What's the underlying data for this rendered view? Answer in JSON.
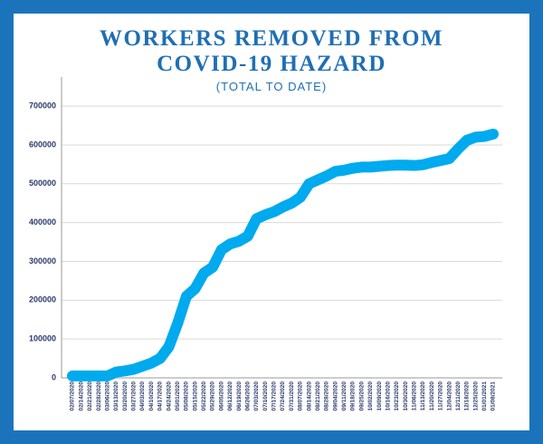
{
  "chart_data": {
    "type": "line",
    "title": [
      "WORKERS REMOVED FROM",
      "COVID-19 HAZARD"
    ],
    "subtitle": "(TOTAL TO DATE)",
    "categories": [
      "02/07/2020",
      "02/14/2020",
      "02/21/2020",
      "02/28/2020",
      "03/06/2020",
      "03/13/2020",
      "03/20/2020",
      "03/27/2020",
      "04/03/2020",
      "04/10/2020",
      "04/17/2020",
      "04/24/2020",
      "05/01/2020",
      "05/08/2020",
      "05/15/2020",
      "05/22/2020",
      "05/29/2020",
      "06/05/2020",
      "06/12/2020",
      "06/19/2020",
      "06/26/2020",
      "07/03/2020",
      "07/10/2020",
      "07/17/2020",
      "07/24/2020",
      "07/31/2020",
      "08/07/2020",
      "08/14/2020",
      "08/21/2020",
      "08/28/2020",
      "09/04/2020",
      "09/11/2020",
      "09/18/2020",
      "09/25/2020",
      "10/02/2020",
      "10/09/2020",
      "10/16/2020",
      "10/23/2020",
      "10/30/2020",
      "11/06/2020",
      "11/13/2020",
      "11/20/2020",
      "11/27/2020",
      "12/04/2020",
      "12/11/2020",
      "12/18/2020",
      "12/25/2020",
      "01/01/2021",
      "01/08/2021"
    ],
    "values": [
      5000,
      5000,
      5000,
      5000,
      5000,
      15000,
      18000,
      22000,
      30000,
      38000,
      50000,
      80000,
      140000,
      210000,
      230000,
      270000,
      285000,
      330000,
      345000,
      352000,
      365000,
      410000,
      420000,
      428000,
      440000,
      450000,
      465000,
      500000,
      510000,
      520000,
      532000,
      535000,
      540000,
      543000,
      543000,
      545000,
      547000,
      548000,
      548000,
      547000,
      549000,
      555000,
      560000,
      565000,
      590000,
      612000,
      620000,
      622000,
      628000
    ],
    "color": "#00aaee",
    "ylim": [
      0,
      775000
    ],
    "yticks": [
      0,
      100000,
      200000,
      300000,
      400000,
      500000,
      600000,
      700000
    ],
    "grid": true
  }
}
